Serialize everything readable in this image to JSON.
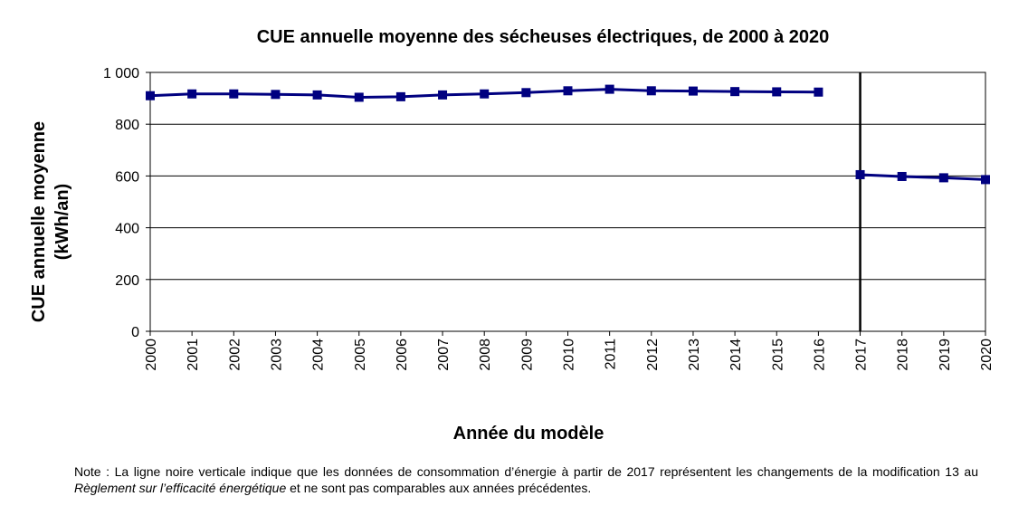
{
  "chart_data": {
    "type": "line",
    "title": "CUE annuelle moyenne des sécheuses électriques, de 2000 à 2020",
    "xlabel": "Année du modèle",
    "ylabel_line1": "CUE annuelle moyenne",
    "ylabel_line2": "(kWh/an)",
    "categories": [
      "2000",
      "2001",
      "2002",
      "2003",
      "2004",
      "2005",
      "2006",
      "2007",
      "2008",
      "2009",
      "2010",
      "2011",
      "2012",
      "2013",
      "2014",
      "2015",
      "2016",
      "2017",
      "2018",
      "2019",
      "2020"
    ],
    "yticks": [
      "0",
      "200",
      "400",
      "600",
      "800",
      "1 000"
    ],
    "ylim": [
      0,
      1000
    ],
    "grid": true,
    "legend": "none",
    "series": [
      {
        "segment": "2000-2016",
        "x": [
          "2000",
          "2001",
          "2002",
          "2003",
          "2004",
          "2005",
          "2006",
          "2007",
          "2008",
          "2009",
          "2010",
          "2011",
          "2012",
          "2013",
          "2014",
          "2015",
          "2016"
        ],
        "values": [
          910,
          917,
          917,
          915,
          913,
          904,
          906,
          913,
          917,
          922,
          929,
          935,
          929,
          928,
          926,
          925,
          924
        ]
      },
      {
        "segment": "2017-2020",
        "x": [
          "2017",
          "2018",
          "2019",
          "2020"
        ],
        "values": [
          605,
          598,
          593,
          586
        ]
      }
    ],
    "marker_line_year": "2017",
    "line_color": "#000080",
    "marker_line_color": "#000000"
  },
  "note": {
    "prefix": "Note : La ligne noire verticale indique que les données de consommation d’énergie à partir de 2017 représentent les changements de la modification 13 au ",
    "italic": "Règlement sur l’efficacité énergétique",
    "suffix": " et ne sont pas comparables aux années précédentes."
  }
}
